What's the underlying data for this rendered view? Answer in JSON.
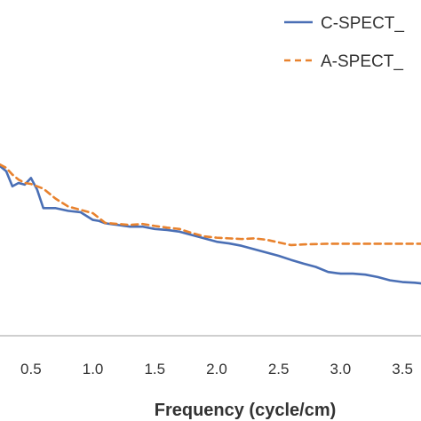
{
  "chart_data": {
    "type": "line",
    "xlabel": "Frequency (cycle/cm)",
    "ylabel": "",
    "title": "",
    "xlim": [
      0.25,
      3.65
    ],
    "ylim": [
      0,
      1
    ],
    "x_ticks": [
      "0.5",
      "1.0",
      "1.5",
      "2.0",
      "2.5",
      "3.0",
      "3.5"
    ],
    "x_tick_values": [
      0.5,
      1.0,
      1.5,
      2.0,
      2.5,
      3.0,
      3.5
    ],
    "legend_placement": "top-right",
    "grid": false,
    "series": [
      {
        "name": "C-SPECT_",
        "color": "#4a6fb5",
        "dash": "solid",
        "x": [
          0.25,
          0.3,
          0.35,
          0.4,
          0.45,
          0.5,
          0.55,
          0.6,
          0.7,
          0.8,
          0.9,
          1.0,
          1.05,
          1.1,
          1.2,
          1.3,
          1.4,
          1.5,
          1.6,
          1.7,
          1.8,
          1.9,
          2.0,
          2.1,
          2.2,
          2.3,
          2.4,
          2.5,
          2.6,
          2.7,
          2.8,
          2.9,
          3.0,
          3.1,
          3.2,
          3.3,
          3.4,
          3.5,
          3.6,
          3.65
        ],
        "y": [
          0.505,
          0.49,
          0.445,
          0.455,
          0.45,
          0.47,
          0.435,
          0.38,
          0.38,
          0.372,
          0.368,
          0.345,
          0.342,
          0.335,
          0.33,
          0.325,
          0.325,
          0.318,
          0.315,
          0.31,
          0.3,
          0.29,
          0.28,
          0.275,
          0.268,
          0.258,
          0.248,
          0.238,
          0.226,
          0.215,
          0.205,
          0.19,
          0.185,
          0.185,
          0.182,
          0.175,
          0.165,
          0.16,
          0.158,
          0.156
        ]
      },
      {
        "name": "A-SPECT_",
        "color": "#e8822e",
        "dash": "dashed",
        "x": [
          0.25,
          0.3,
          0.35,
          0.4,
          0.45,
          0.5,
          0.6,
          0.7,
          0.8,
          0.9,
          1.0,
          1.1,
          1.2,
          1.3,
          1.4,
          1.5,
          1.6,
          1.7,
          1.8,
          1.9,
          2.0,
          2.1,
          2.2,
          2.3,
          2.4,
          2.5,
          2.6,
          2.7,
          2.8,
          2.9,
          3.0,
          3.1,
          3.2,
          3.3,
          3.4,
          3.5,
          3.6,
          3.65
        ],
        "y": [
          0.51,
          0.5,
          0.48,
          0.465,
          0.455,
          0.452,
          0.438,
          0.408,
          0.385,
          0.375,
          0.365,
          0.336,
          0.333,
          0.33,
          0.333,
          0.327,
          0.322,
          0.318,
          0.306,
          0.296,
          0.292,
          0.29,
          0.288,
          0.29,
          0.286,
          0.278,
          0.27,
          0.272,
          0.273,
          0.274,
          0.274,
          0.274,
          0.274,
          0.274,
          0.274,
          0.274,
          0.274,
          0.274
        ]
      }
    ]
  }
}
